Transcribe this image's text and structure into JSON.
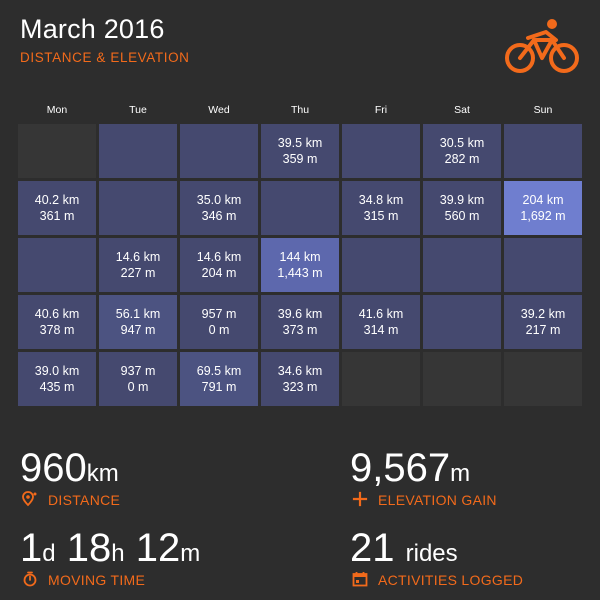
{
  "header": {
    "title": "March 2016",
    "subtitle": "DISTANCE & ELEVATION"
  },
  "colors": {
    "accent": "#f26a1b",
    "background": "#2d2d2d",
    "cell": "#45496f",
    "cell_highlight": "#6f7ecf",
    "cell_empty": "#363636"
  },
  "logo": {
    "icon": "cyclist-icon"
  },
  "calendar": {
    "days": [
      "Mon",
      "Tue",
      "Wed",
      "Thu",
      "Fri",
      "Sat",
      "Sun"
    ],
    "weeks": [
      [
        {
          "empty": true
        },
        {
          "distance": "",
          "elevation": ""
        },
        {
          "distance": "",
          "elevation": ""
        },
        {
          "distance": "39.5 km",
          "elevation": "359 m"
        },
        {
          "distance": "",
          "elevation": ""
        },
        {
          "distance": "30.5 km",
          "elevation": "282 m"
        },
        {
          "distance": "",
          "elevation": ""
        }
      ],
      [
        {
          "distance": "40.2 km",
          "elevation": "361 m"
        },
        {
          "distance": "",
          "elevation": ""
        },
        {
          "distance": "35.0 km",
          "elevation": "346 m"
        },
        {
          "distance": "",
          "elevation": ""
        },
        {
          "distance": "34.8 km",
          "elevation": "315 m"
        },
        {
          "distance": "39.9 km",
          "elevation": "560 m"
        },
        {
          "distance": "204 km",
          "elevation": "1,692 m",
          "level": "bright1"
        }
      ],
      [
        {
          "distance": "",
          "elevation": ""
        },
        {
          "distance": "14.6 km",
          "elevation": "227 m"
        },
        {
          "distance": "14.6 km",
          "elevation": "204 m"
        },
        {
          "distance": "144 km",
          "elevation": "1,443 m",
          "level": "bright2"
        },
        {
          "distance": "",
          "elevation": ""
        },
        {
          "distance": "",
          "elevation": ""
        },
        {
          "distance": "",
          "elevation": ""
        }
      ],
      [
        {
          "distance": "40.6 km",
          "elevation": "378 m"
        },
        {
          "distance": "56.1 km",
          "elevation": "947 m",
          "level": "mid"
        },
        {
          "distance": "957 m",
          "elevation": "0 m"
        },
        {
          "distance": "39.6 km",
          "elevation": "373 m"
        },
        {
          "distance": "41.6 km",
          "elevation": "314 m"
        },
        {
          "distance": "",
          "elevation": ""
        },
        {
          "distance": "39.2 km",
          "elevation": "217 m"
        }
      ],
      [
        {
          "distance": "39.0 km",
          "elevation": "435 m"
        },
        {
          "distance": "937 m",
          "elevation": "0 m"
        },
        {
          "distance": "69.5 km",
          "elevation": "791 m",
          "level": "mid"
        },
        {
          "distance": "34.6 km",
          "elevation": "323 m"
        },
        {
          "empty": true
        },
        {
          "empty": true
        },
        {
          "empty": true
        }
      ]
    ]
  },
  "stats": {
    "distance": {
      "value": "960",
      "unit": "km",
      "label": "DISTANCE",
      "icon": "map-pin-icon"
    },
    "elevation": {
      "value": "9,567",
      "unit": "m",
      "label": "ELEVATION GAIN",
      "icon": "plus-icon"
    },
    "moving_time": {
      "days": "1",
      "days_unit": "d",
      "hours": "18",
      "hours_unit": "h",
      "minutes": "12",
      "minutes_unit": "m",
      "label": "MOVING TIME",
      "icon": "stopwatch-icon"
    },
    "activities": {
      "value": "21",
      "unit": "rides",
      "label": "ACTIVITIES LOGGED",
      "icon": "calendar-icon"
    }
  }
}
